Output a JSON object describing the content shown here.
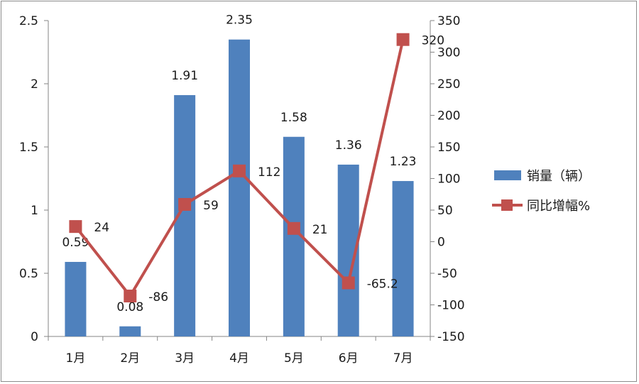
{
  "chart_data": {
    "type": "bar+line",
    "categories": [
      "1月",
      "2月",
      "3月",
      "4月",
      "5月",
      "6月",
      "7月"
    ],
    "series": [
      {
        "name": "销量（辆）",
        "type": "bar",
        "axis": "left",
        "color": "#4f81bd",
        "values": [
          0.59,
          0.08,
          1.91,
          2.35,
          1.58,
          1.36,
          1.23
        ],
        "labels": [
          "0.59",
          "0.08",
          "1.91",
          "2.35",
          "1.58",
          "1.36",
          "1.23"
        ]
      },
      {
        "name": "同比增幅%",
        "type": "line",
        "axis": "right",
        "color": "#c0504d",
        "marker": "square",
        "values": [
          24,
          -86,
          59,
          112,
          21,
          -65.2,
          320
        ],
        "labels": [
          "24",
          "-86",
          "59",
          "112",
          "21",
          "-65.2",
          "320"
        ]
      }
    ],
    "y_left": {
      "ylim": [
        0,
        2.5
      ],
      "ticks": [
        0,
        0.5,
        1,
        1.5,
        2,
        2.5
      ],
      "tick_labels": [
        "0",
        "0.5",
        "1",
        "1.5",
        "2",
        "2.5"
      ]
    },
    "y_right": {
      "ylim": [
        -150,
        350
      ],
      "ticks": [
        -150,
        -100,
        -50,
        0,
        50,
        100,
        150,
        200,
        250,
        300,
        350
      ],
      "tick_labels": [
        "-150",
        "-100",
        "-50",
        "0",
        "50",
        "100",
        "150",
        "200",
        "250",
        "300",
        "350"
      ]
    },
    "grid": false,
    "legend": "right",
    "title": "",
    "xlabel": "",
    "ylabel": ""
  }
}
